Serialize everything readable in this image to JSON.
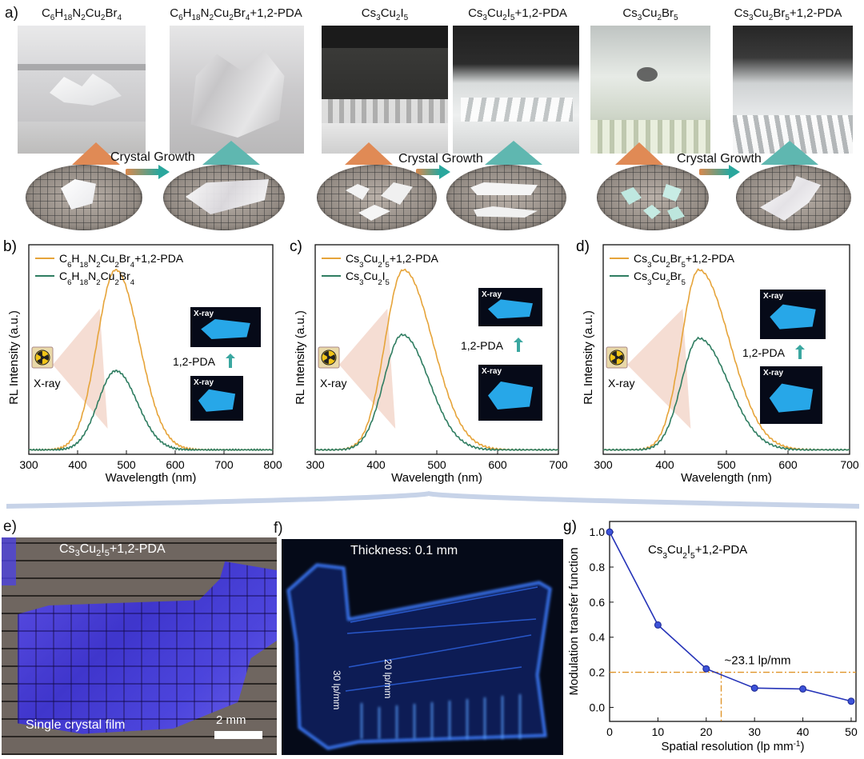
{
  "panel_a": {
    "label": "a)",
    "headers": [
      {
        "pre": "C",
        "s1": "6",
        "m1": "H",
        "s2": "18",
        "m2": "N",
        "s3": "2",
        "m3": "Cu",
        "s4": "2",
        "m4": "Br",
        "s5": "4",
        "post": ""
      },
      {
        "pre": "C",
        "s1": "6",
        "m1": "H",
        "s2": "18",
        "m2": "N",
        "s3": "2",
        "m3": "Cu",
        "s4": "2",
        "m4": "Br",
        "s5": "4",
        "post": "+1,2-PDA"
      },
      {
        "pre": "Cs",
        "s1": "3",
        "m1": "Cu",
        "s2": "2",
        "m2": "I",
        "s3": "5",
        "m3": "",
        "s4": "",
        "m4": "",
        "s5": "",
        "post": ""
      },
      {
        "pre": "Cs",
        "s1": "3",
        "m1": "Cu",
        "s2": "2",
        "m2": "I",
        "s3": "5",
        "m3": "",
        "s4": "",
        "m4": "",
        "s5": "",
        "post": "+1,2-PDA"
      },
      {
        "pre": "Cs",
        "s1": "3",
        "m1": "Cu",
        "s2": "2",
        "m2": "Br",
        "s3": "5",
        "m3": "",
        "s4": "",
        "m4": "",
        "s5": "",
        "post": ""
      },
      {
        "pre": "Cs",
        "s1": "3",
        "m1": "Cu",
        "s2": "2",
        "m2": "Br",
        "s3": "5",
        "m3": "",
        "s4": "",
        "m4": "",
        "s5": "",
        "post": "+1,2-PDA"
      }
    ],
    "growth_label": "Crystal Growth"
  },
  "panel_e": {
    "label": "e)",
    "title_pre": "Cs",
    "s1": "3",
    "m1": "Cu",
    "s2": "2",
    "m2": "I",
    "s3": "5",
    "post": "+1,2-PDA",
    "caption": "Single crystal film",
    "scale": "2 mm"
  },
  "panel_f": {
    "label": "f)",
    "title": "Thickness: 0.1 mm",
    "l30": "30 lp/mm",
    "l20": "20 lp/mm"
  },
  "common": {
    "xray": "X-ray",
    "pda": "1,2-PDA",
    "inset_tag": "X-ray"
  },
  "chart_data": [
    {
      "id": "b",
      "type": "line",
      "label": "b)",
      "xlabel": "Wavelength (nm)",
      "ylabel": "RL Intensity (a.u.)",
      "xlim": [
        300,
        800
      ],
      "xticks": [
        300,
        400,
        500,
        600,
        700,
        800
      ],
      "legend": [
        {
          "pre": "C",
          "s1": "6",
          "m1": "H",
          "s2": "18",
          "m2": "N",
          "s3": "2",
          "m3": "Cu",
          "s4": "2",
          "m4": "Br",
          "s5": "4",
          "post": "+1,2-PDA",
          "color": "#e6a43a"
        },
        {
          "pre": "C",
          "s1": "6",
          "m1": "H",
          "s2": "18",
          "m2": "N",
          "s3": "2",
          "m3": "Cu",
          "s4": "2",
          "m4": "Br",
          "s5": "4",
          "post": "",
          "color": "#2f7d61"
        }
      ],
      "series": [
        {
          "color": "#e6a43a",
          "peak": 478,
          "height": 1.0,
          "wl": 38,
          "wr": 48
        },
        {
          "color": "#2f7d61",
          "peak": 478,
          "height": 0.44,
          "wl": 36,
          "wr": 44
        }
      ]
    },
    {
      "id": "c",
      "type": "line",
      "label": "c)",
      "xlabel": "Wavelength (nm)",
      "ylabel": "RL Intensity (a.u.)",
      "xlim": [
        300,
        700
      ],
      "xticks": [
        300,
        400,
        500,
        600,
        700
      ],
      "legend": [
        {
          "pre": "Cs",
          "s1": "3",
          "m1": "Cu",
          "s2": "2",
          "m2": "I",
          "s3": "5",
          "m3": "",
          "s4": "",
          "m4": "",
          "s5": "",
          "post": "+1,2-PDA",
          "color": "#e6a43a"
        },
        {
          "pre": "Cs",
          "s1": "3",
          "m1": "Cu",
          "s2": "2",
          "m2": "I",
          "s3": "5",
          "m3": "",
          "s4": "",
          "m4": "",
          "s5": "",
          "post": "",
          "color": "#2f7d61"
        }
      ],
      "series": [
        {
          "color": "#e6a43a",
          "peak": 445,
          "height": 1.0,
          "wl": 30,
          "wr": 48
        },
        {
          "color": "#2f7d61",
          "peak": 443,
          "height": 0.64,
          "wl": 30,
          "wr": 44
        }
      ]
    },
    {
      "id": "d",
      "type": "line",
      "label": "d)",
      "xlabel": "Wavelength (nm)",
      "ylabel": "RL Intensity (a.u.)",
      "xlim": [
        300,
        700
      ],
      "xticks": [
        300,
        400,
        500,
        600,
        700
      ],
      "legend": [
        {
          "pre": "Cs",
          "s1": "3",
          "m1": "Cu",
          "s2": "2",
          "m2": "Br",
          "s3": "5",
          "m3": "",
          "s4": "",
          "m4": "",
          "s5": "",
          "post": "+1,2-PDA",
          "color": "#e6a43a"
        },
        {
          "pre": "Cs",
          "s1": "3",
          "m1": "Cu",
          "s2": "2",
          "m2": "Br",
          "s3": "5",
          "m3": "",
          "s4": "",
          "m4": "",
          "s5": "",
          "post": "",
          "color": "#2f7d61"
        }
      ],
      "series": [
        {
          "color": "#e6a43a",
          "peak": 455,
          "height": 1.0,
          "wl": 28,
          "wr": 50
        },
        {
          "color": "#2f7d61",
          "peak": 455,
          "height": 0.62,
          "wl": 28,
          "wr": 48
        }
      ]
    },
    {
      "id": "g",
      "type": "line",
      "label": "g)",
      "xlabel": "Spatial resolution (lp mm",
      "xlabel_sup": "-1",
      "xlabel_post": ")",
      "ylabel": "Modulation transfer function",
      "xlim": [
        0,
        51
      ],
      "ylim": [
        -0.08,
        1.06
      ],
      "xticks": [
        0,
        10,
        20,
        30,
        40,
        50
      ],
      "yticks": [
        0.0,
        0.2,
        0.4,
        0.6,
        0.8,
        1.0
      ],
      "title": {
        "pre": "Cs",
        "s1": "3",
        "m1": "Cu",
        "s2": "2",
        "m2": "I",
        "s3": "5",
        "post": "+1,2-PDA"
      },
      "annotation": "~23.1 lp/mm",
      "threshold": {
        "x": 23.1,
        "y": 0.2
      },
      "series": [
        {
          "color": "#2533b8",
          "x": [
            0,
            10,
            20,
            30,
            40,
            50
          ],
          "y": [
            1.0,
            0.47,
            0.22,
            0.11,
            0.105,
            0.035
          ]
        }
      ]
    }
  ]
}
